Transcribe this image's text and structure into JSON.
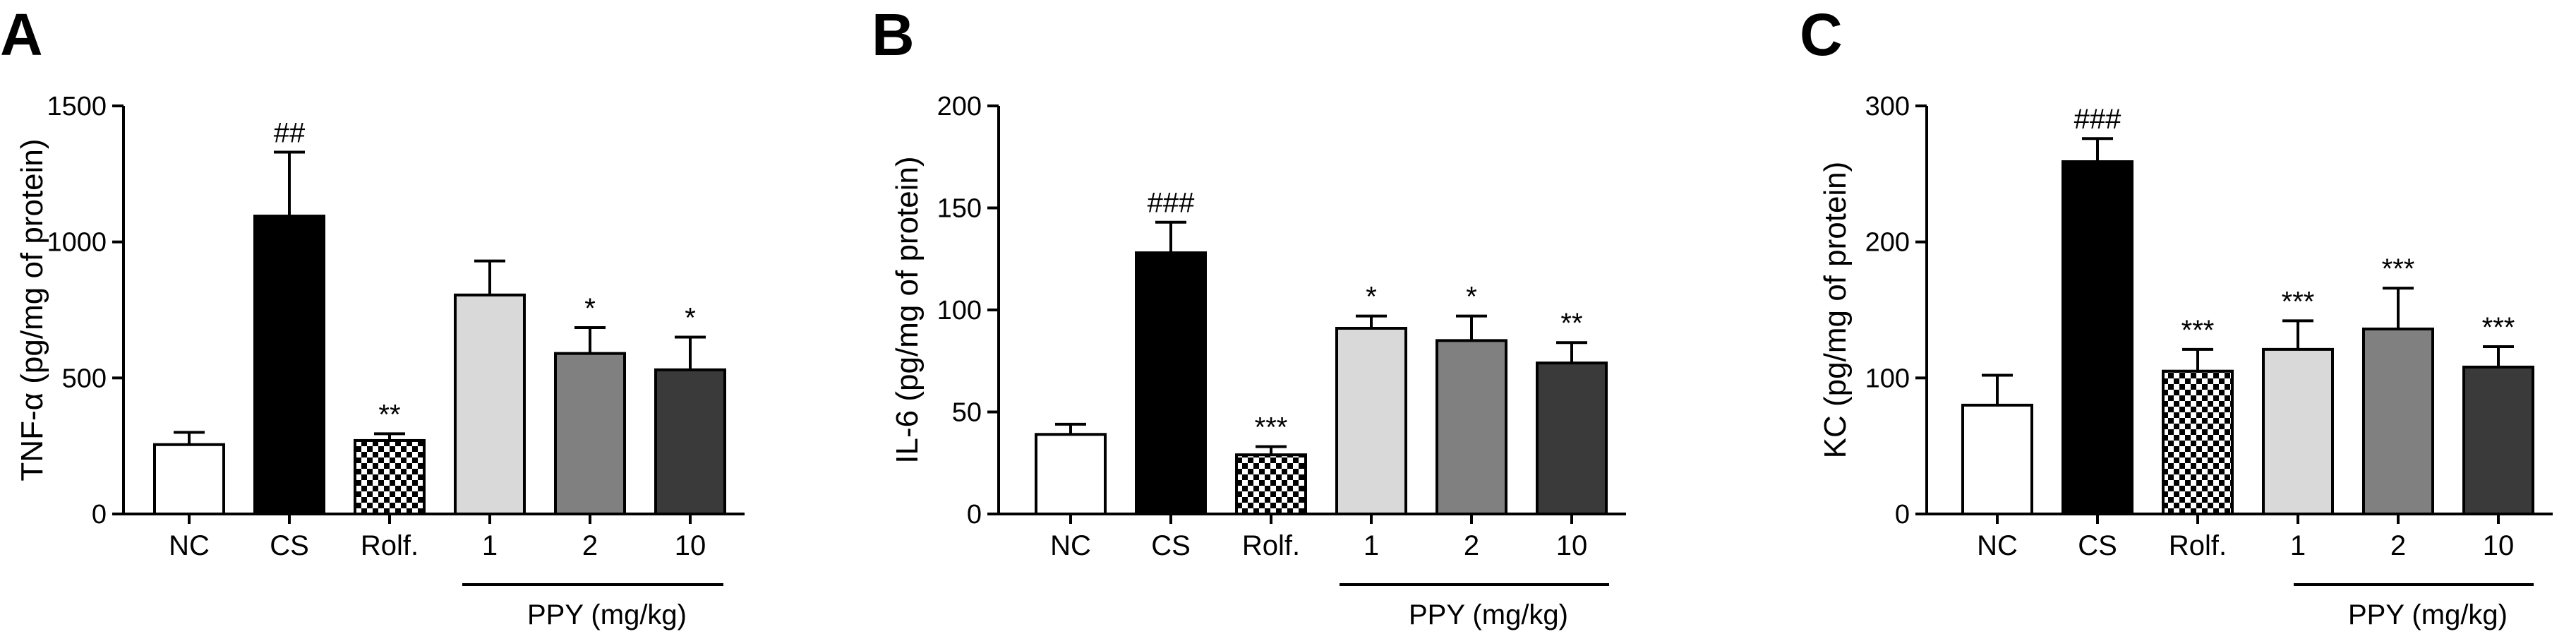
{
  "group_label": "PPY (mg/kg)",
  "categories": [
    "NC",
    "CS",
    "Rolf.",
    "1",
    "2",
    "10"
  ],
  "bar_styles": [
    {
      "fill": "#ffffff",
      "pattern": "none"
    },
    {
      "fill": "#000000",
      "pattern": "none"
    },
    {
      "fill": "#ffffff",
      "pattern": "checker"
    },
    {
      "fill": "#d9d9d9",
      "pattern": "none"
    },
    {
      "fill": "#808080",
      "pattern": "none"
    },
    {
      "fill": "#3a3a3a",
      "pattern": "none"
    }
  ],
  "chart_data": [
    {
      "type": "bar",
      "panel": "A",
      "ylabel": "TNF-α (pg/mg of protein)",
      "ylim": [
        0,
        1500
      ],
      "yticks": [
        0,
        500,
        1000,
        1500
      ],
      "categories": [
        "NC",
        "CS",
        "Rolf.",
        "1",
        "2",
        "10"
      ],
      "values": [
        255,
        1095,
        270,
        805,
        590,
        530
      ],
      "errors": [
        45,
        235,
        25,
        125,
        95,
        120
      ],
      "annotations": [
        "",
        "##",
        "**",
        "",
        "*",
        "*"
      ]
    },
    {
      "type": "bar",
      "panel": "B",
      "ylabel": "IL-6 (pg/mg of protein)",
      "ylim": [
        0,
        200
      ],
      "yticks": [
        0,
        50,
        100,
        150,
        200
      ],
      "categories": [
        "NC",
        "CS",
        "Rolf.",
        "1",
        "2",
        "10"
      ],
      "values": [
        39,
        128,
        29,
        91,
        85,
        74
      ],
      "errors": [
        5,
        15,
        4,
        6,
        12,
        10
      ],
      "annotations": [
        "",
        "###",
        "***",
        "*",
        "*",
        "**"
      ]
    },
    {
      "type": "bar",
      "panel": "C",
      "ylabel": "KC (pg/mg of protein)",
      "ylim": [
        0,
        300
      ],
      "yticks": [
        0,
        100,
        200,
        300
      ],
      "categories": [
        "NC",
        "CS",
        "Rolf.",
        "1",
        "2",
        "10"
      ],
      "values": [
        80,
        259,
        105,
        121,
        136,
        108
      ],
      "errors": [
        22,
        17,
        16,
        21,
        30,
        15
      ],
      "annotations": [
        "",
        "###",
        "***",
        "***",
        "***",
        "***"
      ]
    }
  ]
}
